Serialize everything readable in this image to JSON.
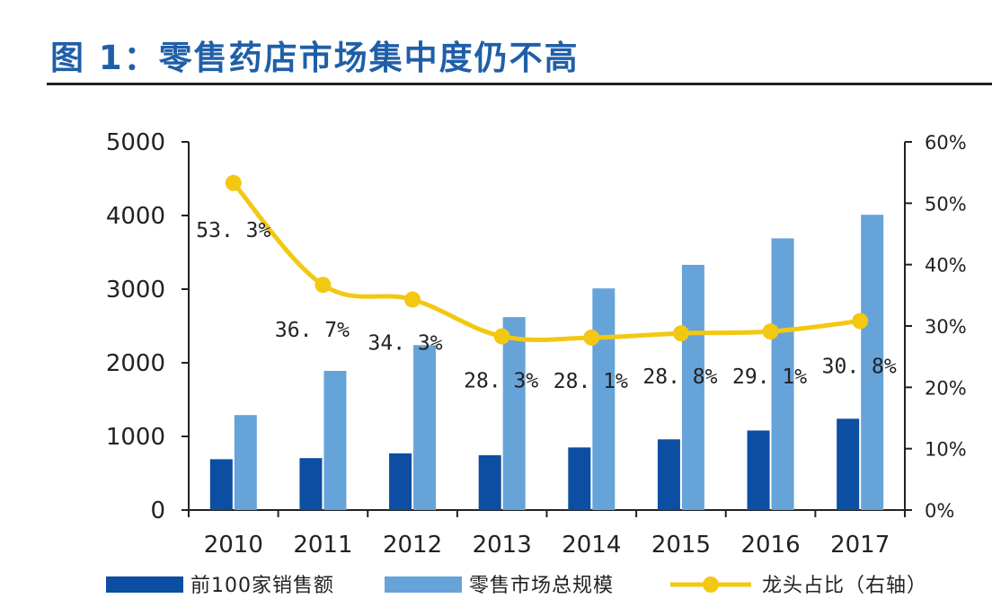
{
  "page": {
    "title": "图 1：零售药店市场集中度仍不高"
  },
  "colors": {
    "title": "#1f5fa8",
    "dark_blue": "#0b4ea2",
    "light_blue": "#66a3d9",
    "yellow": "#f2c812",
    "axis": "#222222"
  },
  "chart_data": {
    "type": "bar",
    "categories": [
      "2010",
      "2011",
      "2012",
      "2013",
      "2014",
      "2015",
      "2016",
      "2017"
    ],
    "series": [
      {
        "name": "前100家销售额",
        "type": "bar",
        "axis": "left",
        "color": "#0b4ea2",
        "values": [
          690,
          705,
          770,
          745,
          850,
          960,
          1080,
          1240
        ]
      },
      {
        "name": "零售市场总规模",
        "type": "bar",
        "axis": "left",
        "color": "#66a3d9",
        "values": [
          1290,
          1890,
          2240,
          2620,
          3010,
          3330,
          3690,
          4010
        ]
      },
      {
        "name": "龙头占比（右轴）",
        "type": "line",
        "axis": "right",
        "color": "#f2c812",
        "values": [
          53.3,
          36.7,
          34.3,
          28.3,
          28.1,
          28.8,
          29.1,
          30.8
        ],
        "labels": [
          "53. 3%",
          "36. 7%",
          "34. 3%",
          "28. 3%",
          "28. 1%",
          "28. 8%",
          "29. 1%",
          "30. 8%"
        ]
      }
    ],
    "y_left": {
      "ylim": [
        0,
        5000
      ],
      "ticks": [
        0,
        1000,
        2000,
        3000,
        4000,
        5000
      ],
      "tick_labels": [
        "0",
        "1000",
        "2000",
        "3000",
        "4000",
        "5000"
      ]
    },
    "y_right": {
      "ylim": [
        0,
        60
      ],
      "ticks": [
        0,
        10,
        20,
        30,
        40,
        50,
        60
      ],
      "tick_labels": [
        "0%",
        "10%",
        "20%",
        "30%",
        "40%",
        "50%",
        "60%"
      ]
    },
    "legend_position": "bottom",
    "grid": false
  }
}
